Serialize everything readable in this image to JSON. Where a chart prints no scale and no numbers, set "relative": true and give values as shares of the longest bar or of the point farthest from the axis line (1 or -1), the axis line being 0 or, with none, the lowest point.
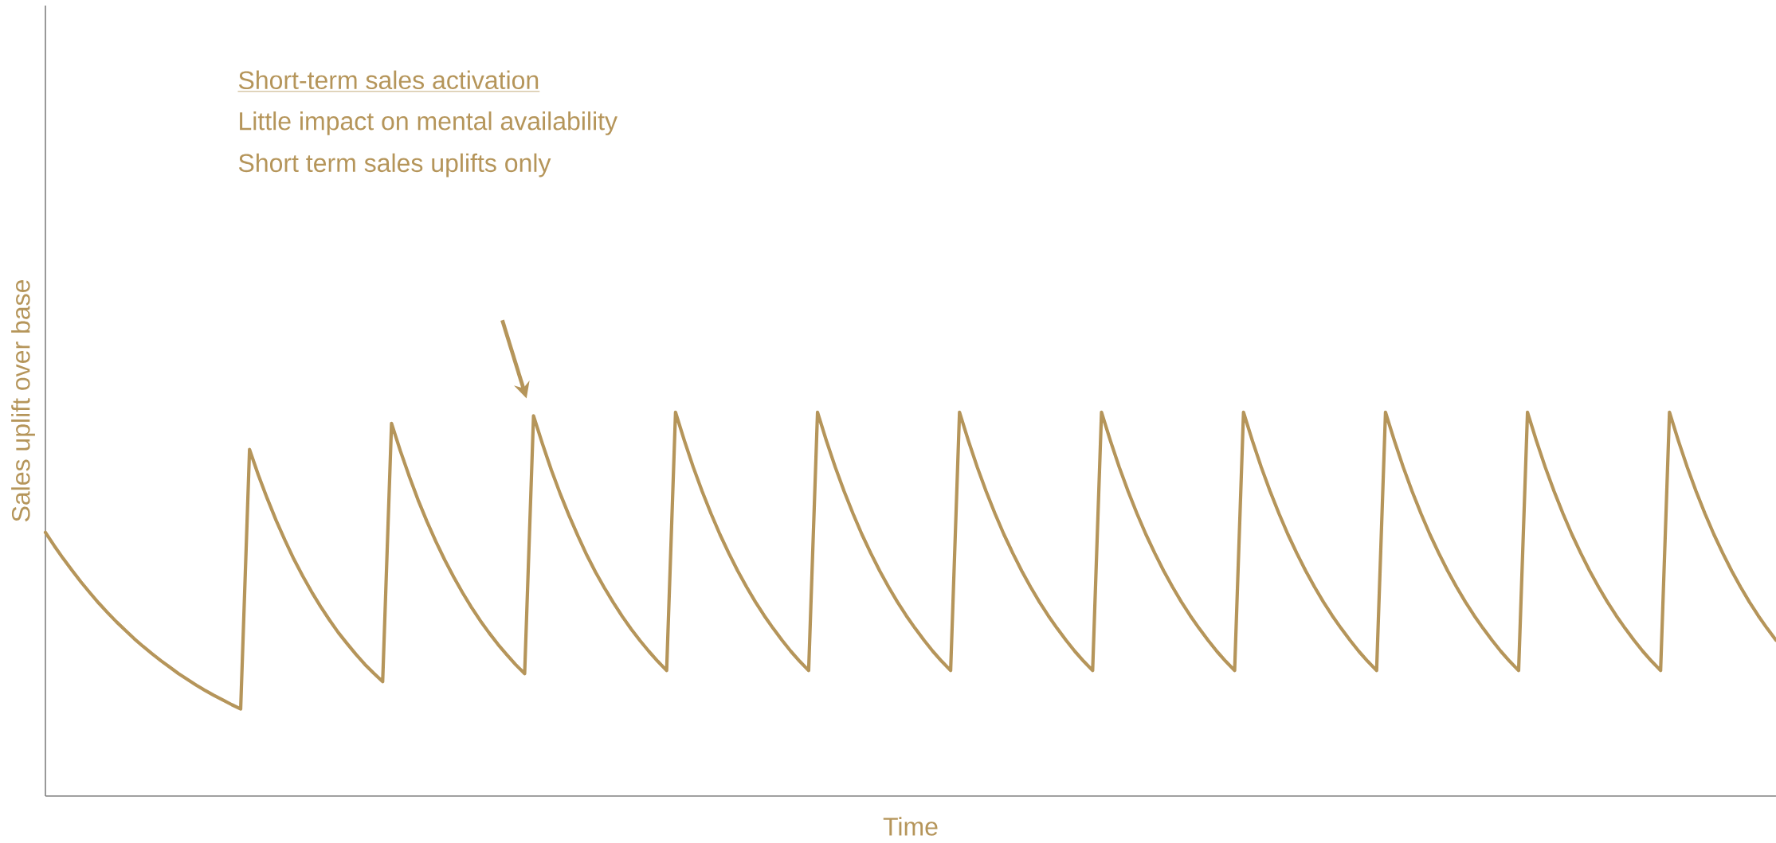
{
  "chart_data": {
    "type": "line",
    "relative": true,
    "xlabel": "Time",
    "ylabel": "Sales uplift over base",
    "annotations": [
      "Short-term sales activation",
      "Little impact on mental availability",
      "Short term sales uplifts only"
    ],
    "tick_labels": false,
    "marker": "none",
    "line_style": "solid",
    "categories": [
      null,
      null,
      null,
      null,
      null,
      null,
      null,
      null,
      null,
      null,
      null,
      null,
      null,
      null,
      null,
      null,
      null,
      null,
      null,
      null,
      null,
      null,
      null,
      null,
      null,
      null,
      null,
      null,
      null,
      null,
      null,
      null,
      null,
      null,
      null,
      null,
      null,
      null,
      null,
      null,
      null,
      null,
      null,
      null,
      null,
      null,
      null,
      null,
      null,
      null,
      null,
      null,
      null,
      null,
      null,
      null,
      null,
      null,
      null,
      null,
      null,
      null,
      null,
      null,
      null,
      null,
      null,
      null,
      null,
      null,
      null,
      null,
      null,
      null,
      null,
      null,
      null,
      null,
      null,
      null,
      null,
      null,
      null,
      null,
      null,
      null,
      null,
      null,
      null,
      null,
      null,
      null,
      null,
      null,
      null,
      null,
      null,
      null,
      null,
      null,
      null,
      null,
      null,
      null,
      null,
      null,
      null,
      null,
      null,
      null,
      null,
      null,
      null,
      null,
      null,
      null,
      null,
      null,
      null,
      null,
      null,
      null,
      null,
      null,
      null,
      null,
      null,
      null,
      null,
      null,
      null,
      null,
      null,
      null,
      null,
      null,
      null,
      null,
      null,
      null,
      null,
      null,
      null,
      null,
      null,
      null,
      null,
      null,
      null,
      null,
      null,
      null,
      null,
      null,
      null,
      null,
      null,
      null,
      null,
      null,
      null,
      null,
      null,
      null,
      null,
      null,
      null,
      null,
      null,
      null,
      null,
      null,
      null,
      null,
      null,
      null,
      null,
      null,
      null,
      null,
      null,
      null,
      null,
      null,
      null,
      null,
      null,
      null,
      null,
      null,
      null,
      null,
      null,
      null,
      null,
      null
    ],
    "series": [
      {
        "color": "#b5955a",
        "values": [
          0.687,
          0.652,
          0.619,
          0.588,
          0.558,
          0.53,
          0.503,
          0.478,
          0.454,
          0.432,
          0.41,
          0.39,
          0.371,
          0.353,
          0.336,
          0.319,
          0.304,
          0.289,
          0.275,
          0.262,
          0.25,
          0.238,
          0.227,
          0.903,
          0.836,
          0.775,
          0.718,
          0.666,
          0.617,
          0.573,
          0.532,
          0.494,
          0.459,
          0.426,
          0.397,
          0.369,
          0.343,
          0.32,
          0.298,
          0.971,
          0.899,
          0.833,
          0.771,
          0.715,
          0.663,
          0.615,
          0.571,
          0.53,
          0.492,
          0.457,
          0.425,
          0.395,
          0.368,
          0.342,
          0.319,
          0.991,
          0.918,
          0.85,
          0.788,
          0.731,
          0.678,
          0.628,
          0.583,
          0.542,
          0.504,
          0.468,
          0.435,
          0.405,
          0.377,
          0.351,
          0.327,
          1.0,
          0.926,
          0.857,
          0.794,
          0.736,
          0.682,
          0.633,
          0.587,
          0.545,
          0.506,
          0.47,
          0.437,
          0.406,
          0.377,
          0.351,
          0.327,
          1.0,
          0.926,
          0.857,
          0.794,
          0.736,
          0.682,
          0.633,
          0.587,
          0.545,
          0.506,
          0.47,
          0.437,
          0.406,
          0.377,
          0.351,
          0.327,
          1.0,
          0.926,
          0.857,
          0.794,
          0.736,
          0.682,
          0.633,
          0.587,
          0.545,
          0.506,
          0.47,
          0.437,
          0.406,
          0.377,
          0.351,
          0.327,
          1.0,
          0.926,
          0.857,
          0.794,
          0.736,
          0.682,
          0.633,
          0.587,
          0.545,
          0.506,
          0.47,
          0.437,
          0.406,
          0.377,
          0.351,
          0.327,
          1.0,
          0.926,
          0.857,
          0.794,
          0.736,
          0.682,
          0.633,
          0.587,
          0.545,
          0.506,
          0.47,
          0.437,
          0.406,
          0.377,
          0.351,
          0.327,
          1.0,
          0.926,
          0.857,
          0.794,
          0.736,
          0.682,
          0.633,
          0.587,
          0.545,
          0.506,
          0.47,
          0.437,
          0.406,
          0.377,
          0.351,
          0.327,
          1.0,
          0.926,
          0.857,
          0.794,
          0.736,
          0.682,
          0.633,
          0.587,
          0.545,
          0.506,
          0.47,
          0.437,
          0.406,
          0.377,
          0.351,
          0.327,
          1.0,
          0.926,
          0.857,
          0.794,
          0.736,
          0.682,
          0.633,
          0.587,
          0.545,
          0.506,
          0.47,
          0.437,
          0.406
        ]
      }
    ]
  }
}
